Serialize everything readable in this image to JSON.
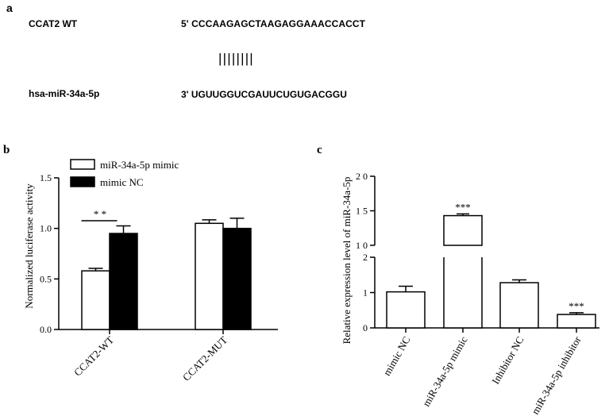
{
  "panel_a": {
    "label": "a",
    "rows": [
      {
        "name": "CCAT2 WT",
        "sequence": "5' CCCAAGAGCTAAGAGGAAACCACCT"
      },
      {
        "name": "hsa-miR-34a-5p",
        "sequence": "3'  UGUUGGUCGAUUCUGUGACGGU"
      }
    ],
    "pairing": "||||||||"
  },
  "chart_data": [
    {
      "panel": "b",
      "type": "bar",
      "ylabel": "Normalized luciferase activity",
      "xlabel": "",
      "ylim": [
        0,
        1.5
      ],
      "ytick_labels": [
        "0.0",
        "0.5",
        "1.0",
        "1.5"
      ],
      "yticks": [
        0,
        0.5,
        1.0,
        1.5
      ],
      "categories": [
        "CCAT2-WT",
        "CCAT2-MUT"
      ],
      "series": [
        {
          "name": "miR-34a-5p mimic",
          "values": [
            0.58,
            1.05
          ],
          "errors": [
            0.025,
            0.035
          ],
          "color": "#ffffff"
        },
        {
          "name": "mimic NC",
          "values": [
            0.95,
            1.0
          ],
          "errors": [
            0.075,
            0.1
          ],
          "color": "#000000"
        }
      ],
      "annotations": [
        {
          "text": "* *",
          "category": "CCAT2-WT"
        }
      ],
      "legend": "top-left"
    },
    {
      "panel": "c",
      "type": "bar",
      "ylabel": "Relative expression level of miR-34a-5p",
      "xlabel": "",
      "broken_axis": {
        "lower": [
          0,
          2
        ],
        "upper": [
          10,
          20
        ]
      },
      "ytick_labels_lower": [
        "0",
        "1",
        "2"
      ],
      "ytick_labels_upper": [
        "1 0",
        "1 5",
        "2 0"
      ],
      "categories": [
        "mimic NC",
        "miR-34a-5p mimic",
        "Inhibitor NC",
        "miR-34a-5p inhibitor"
      ],
      "values": [
        1.02,
        14.3,
        1.28,
        0.38
      ],
      "errors": [
        0.16,
        0.25,
        0.08,
        0.05
      ],
      "annotations": [
        "",
        "***",
        "",
        "***"
      ],
      "bar_color": "#ffffff"
    }
  ]
}
